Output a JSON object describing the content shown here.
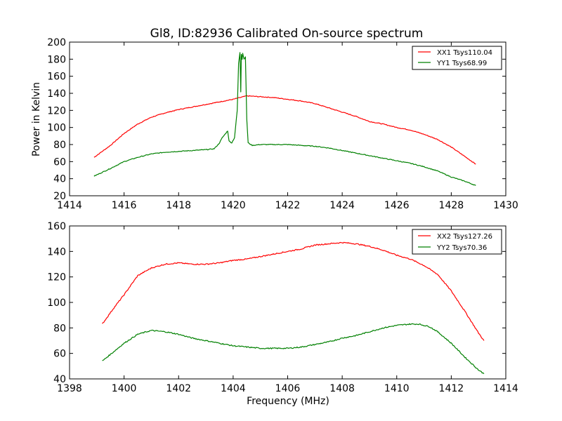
{
  "chart_data": [
    {
      "type": "line",
      "title": "Gl8, ID:82936 Calibrated On-source spectrum",
      "xlabel": "",
      "ylabel": "Power in Kelvin",
      "xlim": [
        1414,
        1430
      ],
      "ylim": [
        20,
        200
      ],
      "xticks": [
        1414,
        1416,
        1418,
        1420,
        1422,
        1424,
        1426,
        1428,
        1430
      ],
      "yticks": [
        20,
        40,
        60,
        80,
        100,
        120,
        140,
        160,
        180,
        200
      ],
      "xtick_labels": [
        "1414",
        "1416",
        "1418",
        "1420",
        "1422",
        "1424",
        "1426",
        "1428",
        "1430"
      ],
      "ytick_labels": [
        "20",
        "40",
        "60",
        "80",
        "100",
        "120",
        "140",
        "160",
        "180",
        "200"
      ],
      "grid": false,
      "legend_position": "top-right",
      "series": [
        {
          "name": "XX1 Tsys110.04",
          "color": "#ff0000",
          "x": [
            1414.9,
            1415.5,
            1416,
            1416.5,
            1417,
            1417.5,
            1418,
            1418.5,
            1419,
            1419.5,
            1420,
            1420.5,
            1421,
            1421.5,
            1422,
            1422.5,
            1423,
            1423.5,
            1424,
            1424.5,
            1425,
            1425.5,
            1426,
            1426.5,
            1427,
            1427.5,
            1428,
            1428.5,
            1428.9
          ],
          "y": [
            65,
            79,
            93,
            104,
            112,
            117,
            121,
            124,
            127,
            130,
            133,
            137,
            136,
            135,
            133,
            131,
            128,
            123,
            118,
            113,
            107,
            104,
            100,
            97,
            92,
            86,
            77,
            66,
            57
          ]
        },
        {
          "name": "YY1 Tsys68.99",
          "color": "#008000",
          "x": [
            1414.9,
            1415.5,
            1416,
            1416.5,
            1417,
            1417.5,
            1418,
            1418.5,
            1419,
            1419.3,
            1419.45,
            1419.5,
            1419.6,
            1419.8,
            1419.85,
            1419.95,
            1420.05,
            1420.15,
            1420.2,
            1420.25,
            1420.28,
            1420.3,
            1420.33,
            1420.35,
            1420.4,
            1420.45,
            1420.5,
            1420.55,
            1420.7,
            1421,
            1421.5,
            1422,
            1422.5,
            1423,
            1423.5,
            1424,
            1424.5,
            1425,
            1425.5,
            1426,
            1426.5,
            1427,
            1427.5,
            1428,
            1428.5,
            1428.9
          ],
          "y": [
            43,
            52,
            60,
            65,
            69,
            71,
            72,
            73,
            74,
            75,
            80,
            82,
            88,
            96,
            84,
            82,
            88,
            120,
            175,
            188,
            142,
            186,
            180,
            187,
            180,
            183,
            110,
            82,
            79,
            80,
            80,
            80,
            79,
            78,
            76,
            73,
            70,
            67,
            64,
            61,
            58,
            54,
            49,
            42,
            37,
            32
          ]
        }
      ]
    },
    {
      "type": "line",
      "title": "",
      "xlabel": "Frequency (MHz)",
      "ylabel": "",
      "xlim": [
        1398,
        1414
      ],
      "ylim": [
        40,
        160
      ],
      "xticks": [
        1398,
        1400,
        1402,
        1404,
        1406,
        1408,
        1410,
        1412,
        1414
      ],
      "yticks": [
        40,
        60,
        80,
        100,
        120,
        140,
        160
      ],
      "xtick_labels": [
        "1398",
        "1400",
        "1402",
        "1404",
        "1406",
        "1408",
        "1410",
        "1412",
        "1414"
      ],
      "ytick_labels": [
        "40",
        "60",
        "80",
        "100",
        "120",
        "140",
        "160"
      ],
      "grid": false,
      "legend_position": "top-right",
      "series": [
        {
          "name": "XX2 Tsys127.26",
          "color": "#ff0000",
          "x": [
            1399.2,
            1399.6,
            1400,
            1400.5,
            1401,
            1401.5,
            1402,
            1402.5,
            1403,
            1403.5,
            1404,
            1404.5,
            1405,
            1405.5,
            1406,
            1406.5,
            1407,
            1407.5,
            1408,
            1408.5,
            1409,
            1409.5,
            1410,
            1410.5,
            1411,
            1411.5,
            1412,
            1412.5,
            1413,
            1413.2
          ],
          "y": [
            83,
            95,
            106,
            121,
            127,
            130,
            131,
            130,
            130,
            131,
            133,
            134,
            136,
            138,
            140,
            142,
            145,
            146,
            147,
            146,
            144,
            141,
            137,
            134,
            129,
            122,
            109,
            93,
            76,
            70
          ]
        },
        {
          "name": "YY2 Tsys70.36",
          "color": "#008000",
          "x": [
            1399.2,
            1399.6,
            1400,
            1400.5,
            1401,
            1401.5,
            1402,
            1402.5,
            1403,
            1403.5,
            1404,
            1404.5,
            1405,
            1405.5,
            1406,
            1406.5,
            1407,
            1407.5,
            1408,
            1408.5,
            1409,
            1409.5,
            1410,
            1410.5,
            1410.8,
            1411.2,
            1411.5,
            1412,
            1412.5,
            1413,
            1413.2
          ],
          "y": [
            54,
            61,
            68,
            75,
            78,
            77,
            75,
            72,
            70,
            68,
            66,
            65,
            64,
            64,
            64,
            65,
            67,
            69,
            72,
            74,
            77,
            80,
            82,
            83,
            83,
            81,
            77,
            68,
            57,
            47,
            44
          ]
        }
      ]
    }
  ]
}
